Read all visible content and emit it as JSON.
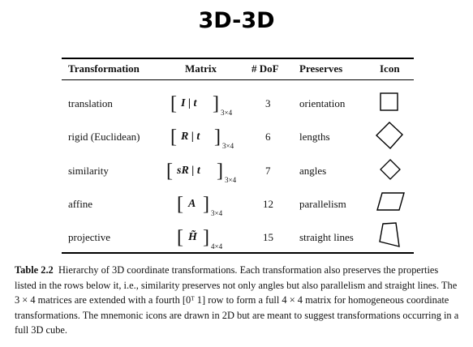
{
  "slide_title": "3D-3D",
  "table": {
    "headers": [
      "Transformation",
      "Matrix",
      "# DoF",
      "Preserves",
      "Icon"
    ],
    "rows": [
      {
        "transformation": "translation",
        "matrix_body": "I | t",
        "matrix_size": "3×4",
        "dof": "3",
        "preserves": "orientation",
        "icon": "square-icon"
      },
      {
        "transformation": "rigid (Euclidean)",
        "matrix_body": "R | t",
        "matrix_size": "3×4",
        "dof": "6",
        "preserves": "lengths",
        "icon": "rotated-square-icon"
      },
      {
        "transformation": "similarity",
        "matrix_body": "sR | t",
        "matrix_size": "3×4",
        "dof": "7",
        "preserves": "angles",
        "icon": "small-rotated-square-icon"
      },
      {
        "transformation": "affine",
        "matrix_body": "A",
        "matrix_size": "3×4",
        "dof": "12",
        "preserves": "parallelism",
        "icon": "parallelogram-icon"
      },
      {
        "transformation": "projective",
        "matrix_body": "H̃",
        "matrix_size": "4×4",
        "dof": "15",
        "preserves": "straight lines",
        "icon": "quadrilateral-icon"
      }
    ]
  },
  "caption": {
    "label": "Table 2.2",
    "text": "Hierarchy of 3D coordinate transformations. Each transformation also preserves the properties listed in the rows below it, i.e., similarity preserves not only angles but also parallelism and straight lines. The 3 × 4 matrices are extended with a fourth [0ᵀ 1] row to form a full 4 × 4 matrix for homogeneous coordinate transformations. The mnemonic icons are drawn in 2D but are meant to suggest transformations occurring in a full 3D cube."
  }
}
